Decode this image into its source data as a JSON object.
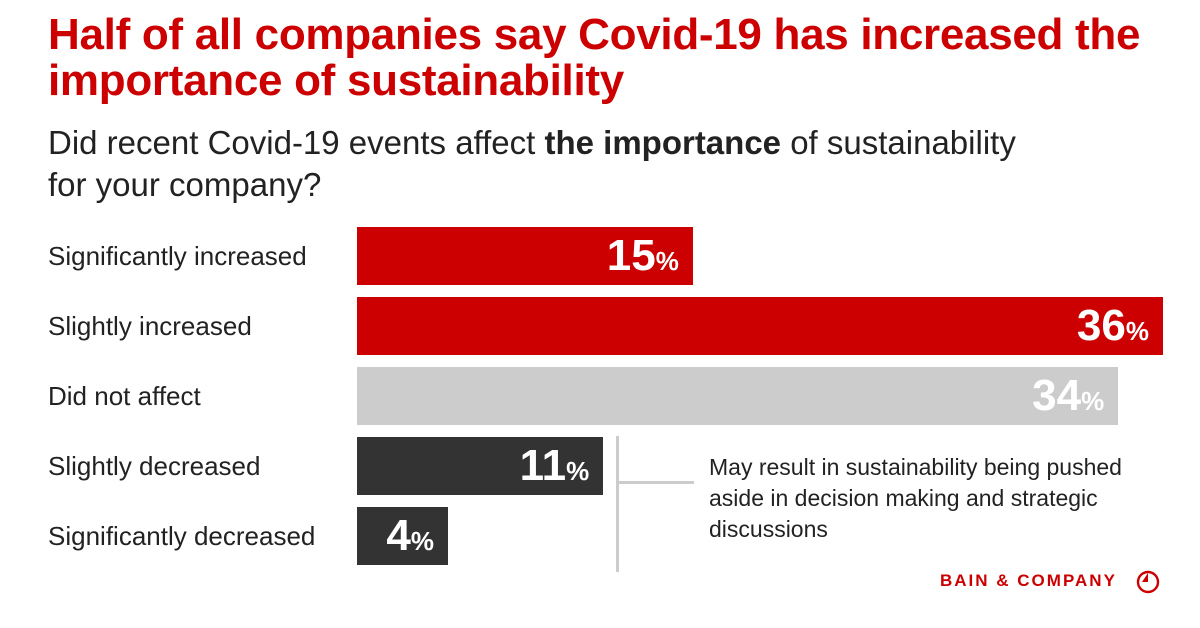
{
  "chart_data": {
    "type": "bar",
    "orientation": "horizontal",
    "title": "Half of all companies say Covid-19 has increased the importance of sustainability",
    "subtitle_parts": [
      "Did recent Covid-19 events affect ",
      "the importance",
      " of sustainability for your company?"
    ],
    "categories": [
      "Significantly increased",
      "Slightly increased",
      "Did not affect",
      "Slightly decreased",
      "Significantly decreased"
    ],
    "values": [
      15,
      36,
      34,
      11,
      4
    ],
    "unit": "%",
    "colors": [
      "#cc0000",
      "#cc0000",
      "#cccccc",
      "#333333",
      "#333333"
    ],
    "annotation": "May result in sustainability being pushed aside in decision making and strategic discussions",
    "annotation_applies_to": [
      "Slightly decreased",
      "Significantly decreased"
    ],
    "grid": false
  },
  "brand": {
    "logo_text": "BAIN & COMPANY",
    "color": "#cc0000"
  }
}
